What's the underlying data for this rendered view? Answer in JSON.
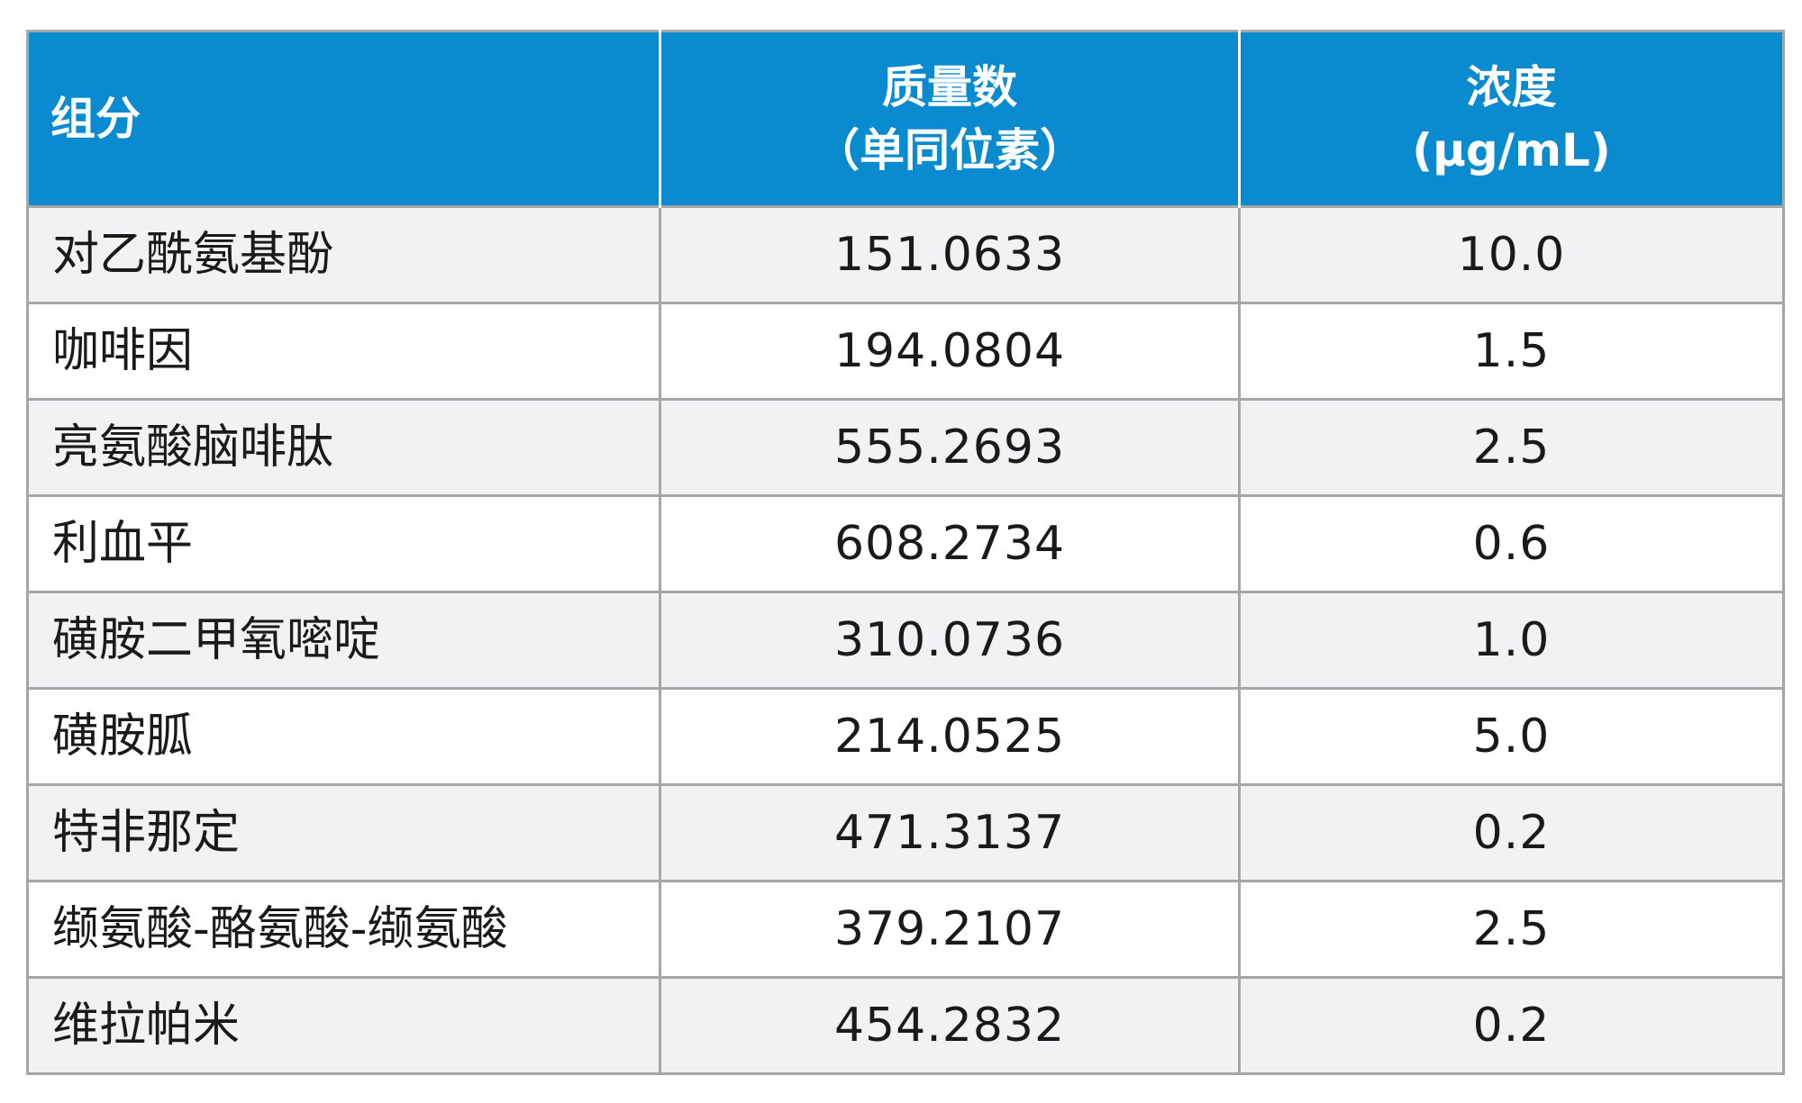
{
  "table": {
    "headers": {
      "component": "组分",
      "mass_line1": "质量数",
      "mass_line2": "（单同位素）",
      "conc_line1": "浓度",
      "conc_line2": "(µg/mL)"
    },
    "rows": [
      {
        "name": "对乙酰氨基酚",
        "mass": "151.0633",
        "conc": "10.0"
      },
      {
        "name": "咖啡因",
        "mass": "194.0804",
        "conc": "1.5"
      },
      {
        "name": "亮氨酸脑啡肽",
        "mass": "555.2693",
        "conc": "2.5"
      },
      {
        "name": "利血平",
        "mass": "608.2734",
        "conc": "0.6"
      },
      {
        "name": "磺胺二甲氧嘧啶",
        "mass": "310.0736",
        "conc": "1.0"
      },
      {
        "name": "磺胺胍",
        "mass": "214.0525",
        "conc": "5.0"
      },
      {
        "name": "特非那定",
        "mass": "471.3137",
        "conc": "0.2"
      },
      {
        "name": "缬氨酸-酪氨酸-缬氨酸",
        "mass": "379.2107",
        "conc": "2.5"
      },
      {
        "name": "维拉帕米",
        "mass": "454.2832",
        "conc": "0.2"
      }
    ]
  },
  "colors": {
    "header_bg": "#0a8bd0",
    "header_text": "#ffffff",
    "row_stripe": "#f2f2f4",
    "border": "#a6a6a6"
  }
}
